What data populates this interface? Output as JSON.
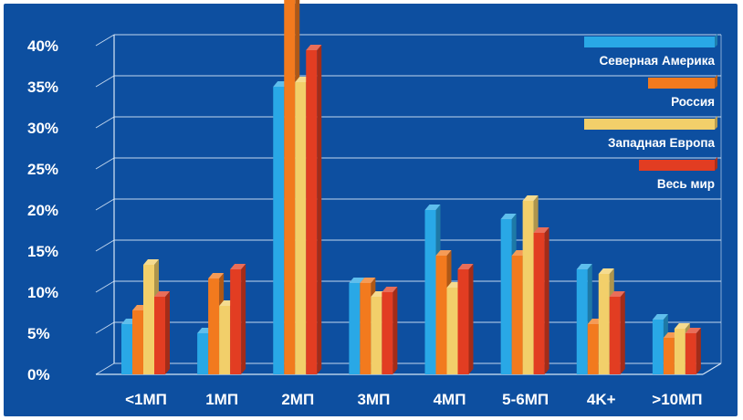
{
  "chart_data": {
    "type": "bar",
    "categories": [
      "<1МП",
      "1МП",
      "2МП",
      "3МП",
      "4МП",
      "5-6МП",
      "4K+",
      ">10МП"
    ],
    "series": [
      {
        "name": "Северная Америка",
        "color": "#29a8e6",
        "values": [
          5.5,
          4.5,
          31.5,
          10,
          18,
          17,
          11.5,
          6
        ]
      },
      {
        "name": "Россия",
        "color": "#f27a1e",
        "values": [
          7,
          10.5,
          42,
          10,
          13,
          13,
          5.5,
          4
        ]
      },
      {
        "name": "Западная Европа",
        "color": "#f2cf6a",
        "values": [
          12,
          7.5,
          32,
          8.5,
          9.5,
          19,
          11,
          5
        ]
      },
      {
        "name": "Весь мир",
        "color": "#e23d22",
        "values": [
          8.5,
          11.5,
          35.5,
          9,
          11.5,
          15.5,
          8.5,
          4.5
        ]
      }
    ],
    "yticks": [
      "0%",
      "5%",
      "10%",
      "15%",
      "20%",
      "25%",
      "30%",
      "35%",
      "40%"
    ],
    "ylim": [
      0,
      40
    ],
    "grid": true,
    "legend_position": "top-right",
    "style": "3d-bars"
  }
}
